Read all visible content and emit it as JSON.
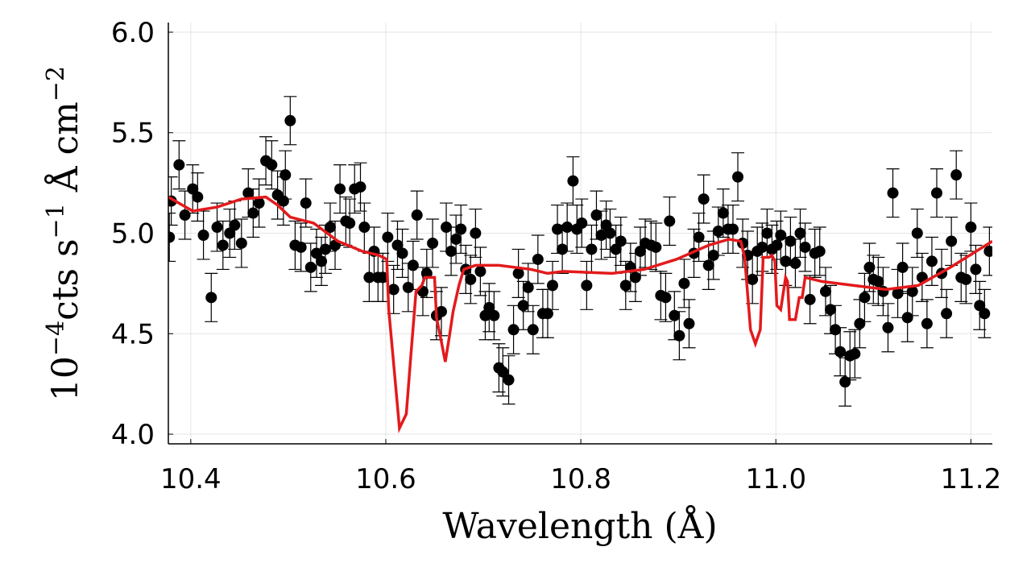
{
  "chart_data": {
    "type": "scatter",
    "xlabel": "Wavelength (Å)",
    "ylabel": [
      "10",
      "−4",
      "cts s",
      "−1",
      " Å cm",
      "−2"
    ],
    "xlim": [
      10.377,
      11.222
    ],
    "ylim": [
      3.952,
      6.048
    ],
    "xticks": [
      10.4,
      10.6,
      10.8,
      {
        "value": 11.0,
        "label": "11.0"
      },
      11.2
    ],
    "yticks": [
      {
        "value": 4.0,
        "label": "4.0"
      },
      4.5,
      {
        "value": 5.0,
        "label": "5.0"
      },
      5.5,
      {
        "value": 6.0,
        "label": "6.0"
      }
    ],
    "grid": true,
    "series": [
      {
        "type": "scatter",
        "color": "#000000",
        "yerr": 0.12,
        "x": [
          10.378,
          10.38,
          10.388,
          10.394,
          10.402,
          10.407,
          10.413,
          10.421,
          10.427,
          10.433,
          10.44,
          10.445,
          10.452,
          10.459,
          10.464,
          10.47,
          10.477,
          10.483,
          10.489,
          10.495,
          10.497,
          10.502,
          10.507,
          10.513,
          10.518,
          10.523,
          10.529,
          10.534,
          10.538,
          10.543,
          10.548,
          10.553,
          10.559,
          10.563,
          10.568,
          10.574,
          10.578,
          10.583,
          10.588,
          10.592,
          10.597,
          10.602,
          10.608,
          10.612,
          10.617,
          10.623,
          10.628,
          10.632,
          10.638,
          10.642,
          10.648,
          10.652,
          10.657,
          10.662,
          10.667,
          10.672,
          10.677,
          10.682,
          10.687,
          10.692,
          10.697,
          10.702,
          10.706,
          10.711,
          10.716,
          10.72,
          10.726,
          10.731,
          10.736,
          10.741,
          10.746,
          10.751,
          10.756,
          10.761,
          10.766,
          10.771,
          10.776,
          10.781,
          10.786,
          10.792,
          10.796,
          10.801,
          10.806,
          10.811,
          10.816,
          10.821,
          10.826,
          10.83,
          10.836,
          10.841,
          10.846,
          10.851,
          10.856,
          10.861,
          10.866,
          10.872,
          10.877,
          10.882,
          10.887,
          10.891,
          10.896,
          10.901,
          10.906,
          10.911,
          10.916,
          10.921,
          10.926,
          10.931,
          10.936,
          10.941,
          10.946,
          10.951,
          10.956,
          10.961,
          10.966,
          10.971,
          10.976,
          10.981,
          10.986,
          10.991,
          10.996,
          11.001,
          11.005,
          11.01,
          11.015,
          11.02,
          11.025,
          11.03,
          11.035,
          11.04,
          11.045,
          11.051,
          11.056,
          11.061,
          11.066,
          11.071,
          11.076,
          11.081,
          11.086,
          11.091,
          11.096,
          11.1,
          11.105,
          11.11,
          11.115,
          11.12,
          11.125,
          11.13,
          11.135,
          11.14,
          11.145,
          11.15,
          11.155,
          11.16,
          11.165,
          11.17,
          11.175,
          11.18,
          11.185,
          11.19,
          11.195,
          11.2,
          11.205,
          11.209,
          11.214,
          11.219
        ],
        "values": [
          4.98,
          5.16,
          5.34,
          5.09,
          5.22,
          5.18,
          4.99,
          4.68,
          5.03,
          4.94,
          5.0,
          5.04,
          4.95,
          5.2,
          5.1,
          5.15,
          5.36,
          5.34,
          5.19,
          5.16,
          5.29,
          5.56,
          4.94,
          4.93,
          5.15,
          4.83,
          4.9,
          4.86,
          4.92,
          5.03,
          4.94,
          5.22,
          5.06,
          5.05,
          5.22,
          5.23,
          5.03,
          4.78,
          4.91,
          4.78,
          4.78,
          4.98,
          4.72,
          4.94,
          4.9,
          4.73,
          4.84,
          5.09,
          4.71,
          4.8,
          4.95,
          4.59,
          4.61,
          5.03,
          4.91,
          4.97,
          5.02,
          4.82,
          4.77,
          5.0,
          4.81,
          4.59,
          4.63,
          4.59,
          4.33,
          4.31,
          4.27,
          4.52,
          4.8,
          4.64,
          4.73,
          4.52,
          4.87,
          4.6,
          4.6,
          4.74,
          5.02,
          4.92,
          5.03,
          5.26,
          5.02,
          5.05,
          4.74,
          4.92,
          5.09,
          4.99,
          5.04,
          5.0,
          4.92,
          4.96,
          4.74,
          4.83,
          4.78,
          4.91,
          4.95,
          4.94,
          4.93,
          4.69,
          4.68,
          5.06,
          4.59,
          4.49,
          4.75,
          4.55,
          4.9,
          4.98,
          5.17,
          4.84,
          4.89,
          5.01,
          5.1,
          5.02,
          5.02,
          5.28,
          4.95,
          4.89,
          4.77,
          4.91,
          4.93,
          5.0,
          4.92,
          4.94,
          4.99,
          4.86,
          4.96,
          4.85,
          5.0,
          4.93,
          4.67,
          4.9,
          4.91,
          4.71,
          4.62,
          4.52,
          4.41,
          4.26,
          4.39,
          4.4,
          4.55,
          4.68,
          4.83,
          4.77,
          4.76,
          4.71,
          4.53,
          5.2,
          4.7,
          4.83,
          4.58,
          4.71,
          5.0,
          4.78,
          4.55,
          4.86,
          5.2,
          4.8,
          4.6,
          4.96,
          5.29,
          4.78,
          4.77,
          5.03,
          4.82,
          4.64,
          4.6,
          4.91
        ]
      },
      {
        "type": "line",
        "color": "#e31a1c",
        "x": [
          10.377,
          10.402,
          10.427,
          10.452,
          10.477,
          10.489,
          10.502,
          10.526,
          10.551,
          10.576,
          10.593,
          10.601,
          10.603,
          10.609,
          10.614,
          10.621,
          10.626,
          10.631,
          10.637,
          10.64,
          10.65,
          10.652,
          10.657,
          10.661,
          10.665,
          10.669,
          10.675,
          10.68,
          10.692,
          10.716,
          10.749,
          10.766,
          10.782,
          10.832,
          10.865,
          10.898,
          10.931,
          10.952,
          10.964,
          10.968,
          10.974,
          10.979,
          10.984,
          10.987,
          10.993,
          10.996,
          10.999,
          11.001,
          11.005,
          11.01,
          11.012,
          11.014,
          11.02,
          11.024,
          11.027,
          11.03,
          11.047,
          11.08,
          11.113,
          11.146,
          11.179,
          11.222
        ],
        "values": [
          5.18,
          5.11,
          5.13,
          5.17,
          5.18,
          5.14,
          5.08,
          5.05,
          4.96,
          4.91,
          4.89,
          4.87,
          4.62,
          4.3,
          4.03,
          4.1,
          4.41,
          4.71,
          4.74,
          4.78,
          4.78,
          4.58,
          4.46,
          4.36,
          4.48,
          4.61,
          4.74,
          4.82,
          4.84,
          4.84,
          4.82,
          4.8,
          4.81,
          4.8,
          4.82,
          4.87,
          4.94,
          4.97,
          4.96,
          4.88,
          4.52,
          4.45,
          4.52,
          4.88,
          4.88,
          4.89,
          4.86,
          4.64,
          4.62,
          4.78,
          4.76,
          4.57,
          4.57,
          4.68,
          4.68,
          4.78,
          4.76,
          4.74,
          4.72,
          4.74,
          4.83,
          4.96
        ]
      }
    ]
  }
}
